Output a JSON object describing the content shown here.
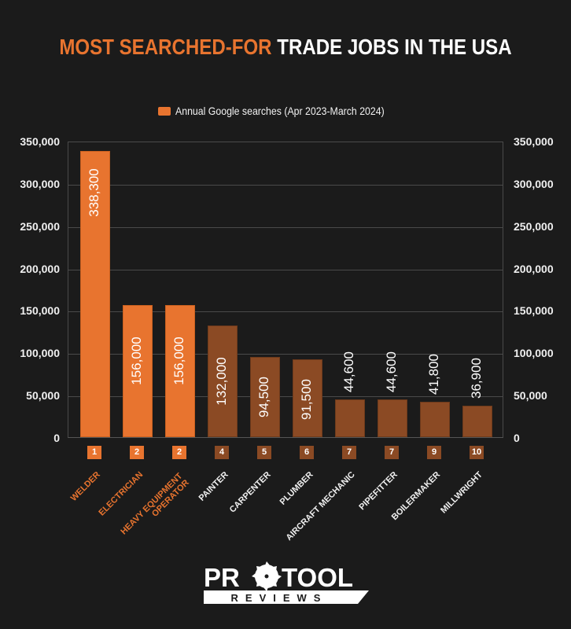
{
  "header": {
    "title_highlight": "MOST SEARCHED-FOR",
    "title_rest": "TRADE JOBS IN THE USA"
  },
  "legend": {
    "label": "Annual Google searches (Apr 2023-March 2024)",
    "color": "#e8742f"
  },
  "axis": {
    "ticks": [
      "350,000",
      "300,000",
      "250,000",
      "200,000",
      "150,000",
      "100,000",
      "50,000",
      "0"
    ]
  },
  "colors": {
    "top3": "#e8742f",
    "others": "#8b4a24",
    "background": "#1b1b1b"
  },
  "bars": [
    {
      "rank": "1",
      "label": "WELDER",
      "value": 338300,
      "display": "338,300",
      "top": true
    },
    {
      "rank": "2",
      "label": "ELECTRICIAN",
      "value": 156000,
      "display": "156,000",
      "top": true
    },
    {
      "rank": "2",
      "label": "HEAVY EQUIPMENT OPERATOR",
      "value": 156000,
      "display": "156,000",
      "top": true
    },
    {
      "rank": "4",
      "label": "PAINTER",
      "value": 132000,
      "display": "132,000",
      "top": false
    },
    {
      "rank": "5",
      "label": "CARPENTER",
      "value": 94500,
      "display": "94,500",
      "top": false
    },
    {
      "rank": "6",
      "label": "PLUMBER",
      "value": 91500,
      "display": "91,500",
      "top": false
    },
    {
      "rank": "7",
      "label": "AIRCRAFT MECHANIC",
      "value": 44600,
      "display": "44,600",
      "top": false
    },
    {
      "rank": "7",
      "label": "PIPEFITTER",
      "value": 44600,
      "display": "44,600",
      "top": false
    },
    {
      "rank": "9",
      "label": "BOILERMAKER",
      "value": 41800,
      "display": "41,800",
      "top": false
    },
    {
      "rank": "10",
      "label": "MILLWRIGHT",
      "value": 36900,
      "display": "36,900",
      "top": false
    }
  ],
  "logo": {
    "line1_left": "PR",
    "line1_right": "TOOL",
    "line2": "REVIEWS"
  },
  "chart_data": {
    "type": "bar",
    "title": "MOST SEARCHED-FOR TRADE JOBS IN THE USA",
    "categories": [
      "WELDER",
      "ELECTRICIAN",
      "HEAVY EQUIPMENT OPERATOR",
      "PAINTER",
      "CARPENTER",
      "PLUMBER",
      "AIRCRAFT MECHANIC",
      "PIPEFITTER",
      "BOILERMAKER",
      "MILLWRIGHT"
    ],
    "series": [
      {
        "name": "Annual Google searches (Apr 2023-March 2024)",
        "values": [
          338300,
          156000,
          156000,
          132000,
          94500,
          91500,
          44600,
          44600,
          41800,
          36900
        ]
      }
    ],
    "ranks": [
      1,
      2,
      2,
      4,
      5,
      6,
      7,
      7,
      9,
      10
    ],
    "xlabel": "",
    "ylabel": "",
    "ylim": [
      0,
      350000
    ],
    "yticks": [
      0,
      50000,
      100000,
      150000,
      200000,
      250000,
      300000,
      350000
    ],
    "grid": true,
    "legend_position": "top",
    "secondary_y_axis": true
  }
}
